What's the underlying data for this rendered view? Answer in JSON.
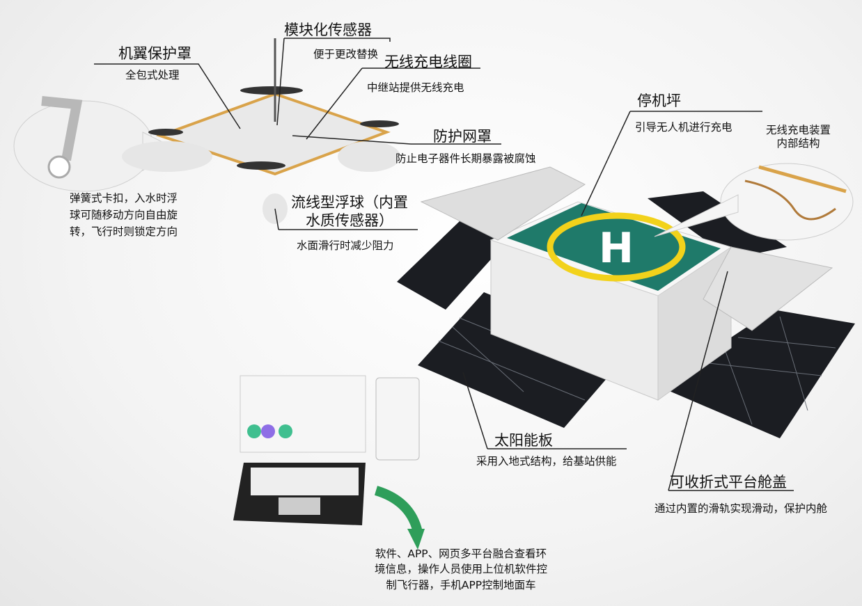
{
  "labels": {
    "sensor_module": {
      "title": "模块化传感器",
      "sub": "便于更改替换"
    },
    "wing_guard": {
      "title": "机翼保护罩",
      "sub": "全包式处理"
    },
    "wireless_coil": {
      "title": "无线充电线圈",
      "sub": "中继站提供无线充电"
    },
    "protective_mesh": {
      "title": "防护网罩",
      "sub": "防止电子器件长期暴露被腐蚀"
    },
    "landing_pad": {
      "title": "停机坪",
      "sub": "引导无人机进行充电"
    },
    "charging_device": {
      "title": "无线充电装置\n内部结构"
    },
    "spring_clip": {
      "sub": "弹簧式卡扣，入水时浮\n球可随移动方向自由旋\n转，飞行时则锁定方向"
    },
    "float_ball": {
      "title": "流线型浮球（内置\n水质传感器）",
      "sub": "水面滑行时减少阻力"
    },
    "solar_panel": {
      "title": "太阳能板",
      "sub": "采用入地式结构，给基站供能"
    },
    "foldable_cover": {
      "title": "可收折式平台舱盖",
      "sub": "通过内置的滑轨实现滑动，保护内舱"
    },
    "software": {
      "sub": "软件、APP、网页多平台融合查看环\n境信息，操作人员使用上位机软件控\n制飞行器，手机APP控制地面车"
    }
  },
  "colors": {
    "pad_green": "#1f7a6a",
    "pad_yellow": "#f2d21b",
    "panel": "#1b1d22",
    "box": "#eeeeee",
    "arrow": "#2e9e5a",
    "frame": "#d9a34a"
  },
  "pad_letter": "H"
}
